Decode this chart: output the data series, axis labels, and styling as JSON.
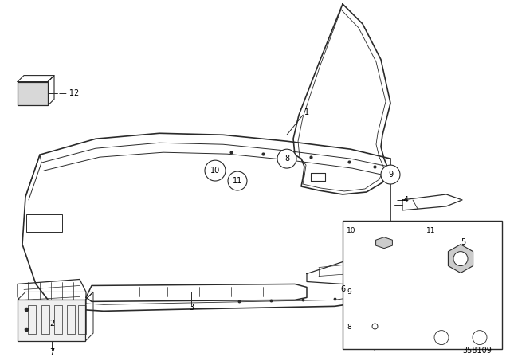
{
  "bg_color": "#ffffff",
  "line_color": "#2a2a2a",
  "diagram_id": "358109",
  "figsize": [
    6.4,
    4.48
  ],
  "dpi": 100
}
